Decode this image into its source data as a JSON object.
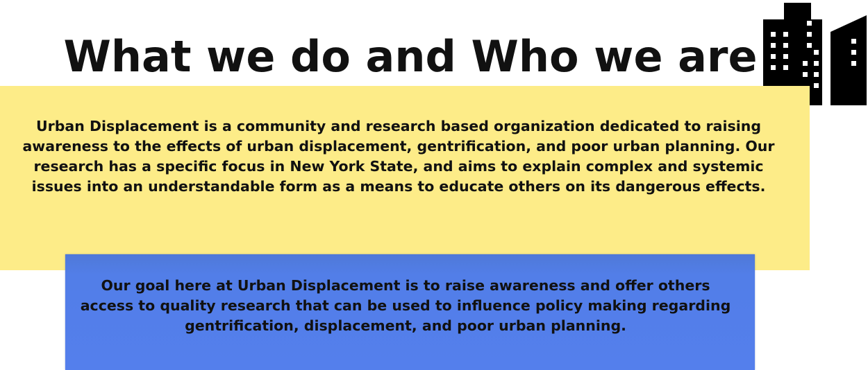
{
  "header": {
    "title": "What we do and Who we are",
    "icon": "city-buildings-icon"
  },
  "about": {
    "text": "Urban Displacement is a community and research based organization dedicated to raising awareness to the effects of urban displacement, gentrification, and poor urban planning. Our research has a specific focus in New York State, and aims to explain complex and systemic issues into an understandable form as a means to educate others on its dangerous effects."
  },
  "goal": {
    "text": "Our goal here at Urban Displacement is to raise awareness and offer others access to quality research that can be used to influence policy making regarding gentrification, displacement, and poor urban planning."
  },
  "colors": {
    "about_panel": "#fdec88",
    "goal_panel": "#547fec",
    "text": "#111111"
  }
}
